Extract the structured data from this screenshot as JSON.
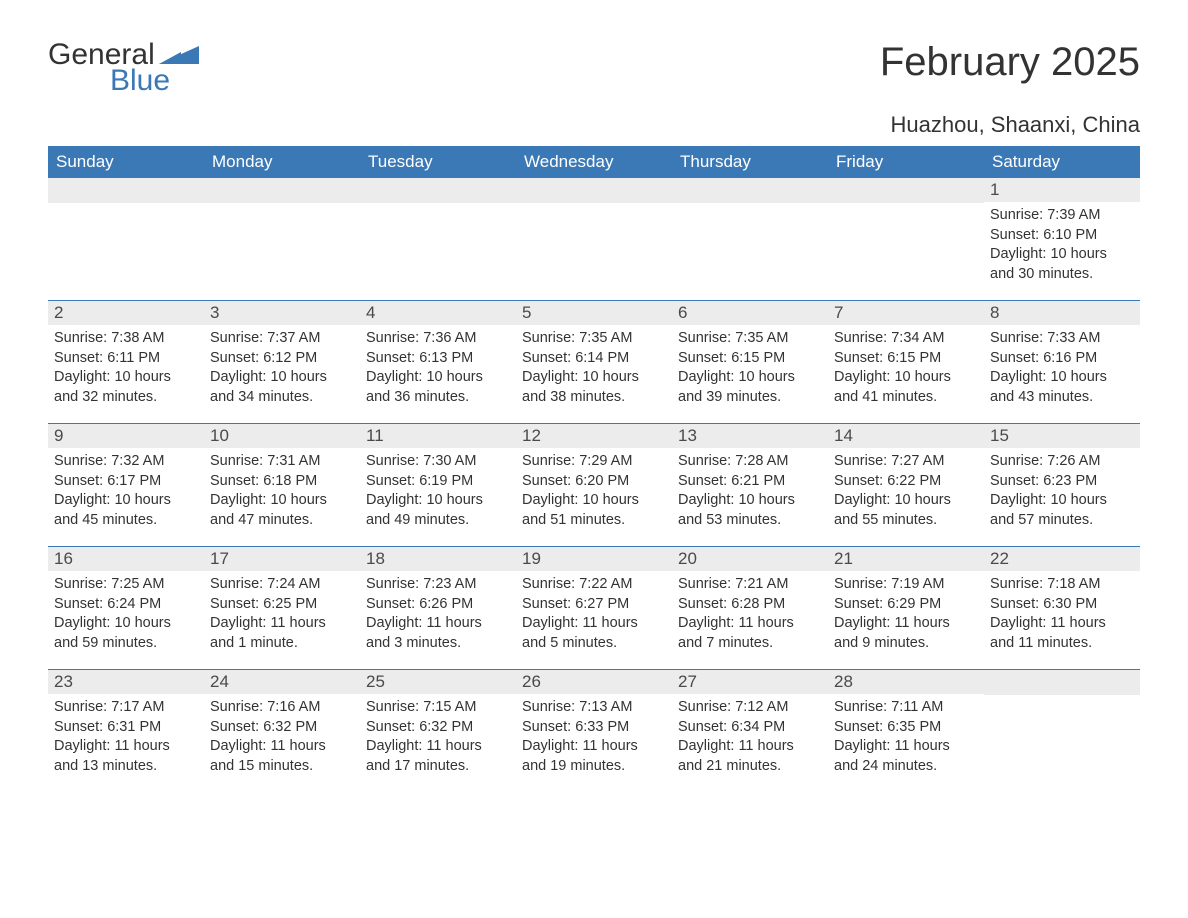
{
  "logo": {
    "general": "General",
    "blue": "Blue"
  },
  "title": "February 2025",
  "location": "Huazhou, Shaanxi, China",
  "weekday_headers": [
    "Sunday",
    "Monday",
    "Tuesday",
    "Wednesday",
    "Thursday",
    "Friday",
    "Saturday"
  ],
  "colors": {
    "brand_blue": "#3a78b6",
    "text": "#333333",
    "daynum_bg": "#ececec",
    "white": "#ffffff"
  },
  "weeks": [
    [
      null,
      null,
      null,
      null,
      null,
      null,
      {
        "day": "1",
        "sunrise": "Sunrise: 7:39 AM",
        "sunset": "Sunset: 6:10 PM",
        "daylight": "Daylight: 10 hours and 30 minutes."
      }
    ],
    [
      {
        "day": "2",
        "sunrise": "Sunrise: 7:38 AM",
        "sunset": "Sunset: 6:11 PM",
        "daylight": "Daylight: 10 hours and 32 minutes."
      },
      {
        "day": "3",
        "sunrise": "Sunrise: 7:37 AM",
        "sunset": "Sunset: 6:12 PM",
        "daylight": "Daylight: 10 hours and 34 minutes."
      },
      {
        "day": "4",
        "sunrise": "Sunrise: 7:36 AM",
        "sunset": "Sunset: 6:13 PM",
        "daylight": "Daylight: 10 hours and 36 minutes."
      },
      {
        "day": "5",
        "sunrise": "Sunrise: 7:35 AM",
        "sunset": "Sunset: 6:14 PM",
        "daylight": "Daylight: 10 hours and 38 minutes."
      },
      {
        "day": "6",
        "sunrise": "Sunrise: 7:35 AM",
        "sunset": "Sunset: 6:15 PM",
        "daylight": "Daylight: 10 hours and 39 minutes."
      },
      {
        "day": "7",
        "sunrise": "Sunrise: 7:34 AM",
        "sunset": "Sunset: 6:15 PM",
        "daylight": "Daylight: 10 hours and 41 minutes."
      },
      {
        "day": "8",
        "sunrise": "Sunrise: 7:33 AM",
        "sunset": "Sunset: 6:16 PM",
        "daylight": "Daylight: 10 hours and 43 minutes."
      }
    ],
    [
      {
        "day": "9",
        "sunrise": "Sunrise: 7:32 AM",
        "sunset": "Sunset: 6:17 PM",
        "daylight": "Daylight: 10 hours and 45 minutes."
      },
      {
        "day": "10",
        "sunrise": "Sunrise: 7:31 AM",
        "sunset": "Sunset: 6:18 PM",
        "daylight": "Daylight: 10 hours and 47 minutes."
      },
      {
        "day": "11",
        "sunrise": "Sunrise: 7:30 AM",
        "sunset": "Sunset: 6:19 PM",
        "daylight": "Daylight: 10 hours and 49 minutes."
      },
      {
        "day": "12",
        "sunrise": "Sunrise: 7:29 AM",
        "sunset": "Sunset: 6:20 PM",
        "daylight": "Daylight: 10 hours and 51 minutes."
      },
      {
        "day": "13",
        "sunrise": "Sunrise: 7:28 AM",
        "sunset": "Sunset: 6:21 PM",
        "daylight": "Daylight: 10 hours and 53 minutes."
      },
      {
        "day": "14",
        "sunrise": "Sunrise: 7:27 AM",
        "sunset": "Sunset: 6:22 PM",
        "daylight": "Daylight: 10 hours and 55 minutes."
      },
      {
        "day": "15",
        "sunrise": "Sunrise: 7:26 AM",
        "sunset": "Sunset: 6:23 PM",
        "daylight": "Daylight: 10 hours and 57 minutes."
      }
    ],
    [
      {
        "day": "16",
        "sunrise": "Sunrise: 7:25 AM",
        "sunset": "Sunset: 6:24 PM",
        "daylight": "Daylight: 10 hours and 59 minutes."
      },
      {
        "day": "17",
        "sunrise": "Sunrise: 7:24 AM",
        "sunset": "Sunset: 6:25 PM",
        "daylight": "Daylight: 11 hours and 1 minute."
      },
      {
        "day": "18",
        "sunrise": "Sunrise: 7:23 AM",
        "sunset": "Sunset: 6:26 PM",
        "daylight": "Daylight: 11 hours and 3 minutes."
      },
      {
        "day": "19",
        "sunrise": "Sunrise: 7:22 AM",
        "sunset": "Sunset: 6:27 PM",
        "daylight": "Daylight: 11 hours and 5 minutes."
      },
      {
        "day": "20",
        "sunrise": "Sunrise: 7:21 AM",
        "sunset": "Sunset: 6:28 PM",
        "daylight": "Daylight: 11 hours and 7 minutes."
      },
      {
        "day": "21",
        "sunrise": "Sunrise: 7:19 AM",
        "sunset": "Sunset: 6:29 PM",
        "daylight": "Daylight: 11 hours and 9 minutes."
      },
      {
        "day": "22",
        "sunrise": "Sunrise: 7:18 AM",
        "sunset": "Sunset: 6:30 PM",
        "daylight": "Daylight: 11 hours and 11 minutes."
      }
    ],
    [
      {
        "day": "23",
        "sunrise": "Sunrise: 7:17 AM",
        "sunset": "Sunset: 6:31 PM",
        "daylight": "Daylight: 11 hours and 13 minutes."
      },
      {
        "day": "24",
        "sunrise": "Sunrise: 7:16 AM",
        "sunset": "Sunset: 6:32 PM",
        "daylight": "Daylight: 11 hours and 15 minutes."
      },
      {
        "day": "25",
        "sunrise": "Sunrise: 7:15 AM",
        "sunset": "Sunset: 6:32 PM",
        "daylight": "Daylight: 11 hours and 17 minutes."
      },
      {
        "day": "26",
        "sunrise": "Sunrise: 7:13 AM",
        "sunset": "Sunset: 6:33 PM",
        "daylight": "Daylight: 11 hours and 19 minutes."
      },
      {
        "day": "27",
        "sunrise": "Sunrise: 7:12 AM",
        "sunset": "Sunset: 6:34 PM",
        "daylight": "Daylight: 11 hours and 21 minutes."
      },
      {
        "day": "28",
        "sunrise": "Sunrise: 7:11 AM",
        "sunset": "Sunset: 6:35 PM",
        "daylight": "Daylight: 11 hours and 24 minutes."
      },
      null
    ]
  ]
}
